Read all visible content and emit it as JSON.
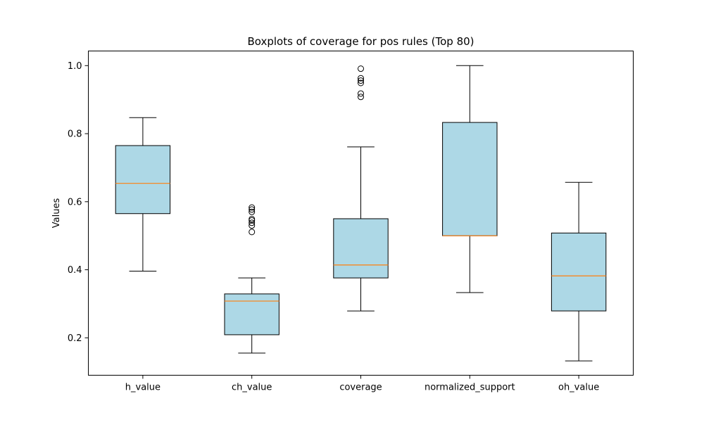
{
  "chart_data": {
    "type": "boxplot",
    "title": "Boxplots of coverage for pos rules (Top 80)",
    "xlabel": "",
    "ylabel": "Values",
    "ylim": [
      0.09,
      1.043
    ],
    "yticks": [
      0.2,
      0.4,
      0.6,
      0.8,
      1.0
    ],
    "ytick_labels": [
      "0.2",
      "0.4",
      "0.6",
      "0.8",
      "1.0"
    ],
    "grid": false,
    "colors": {
      "box_fill": "#add8e6",
      "median": "#ff7f0e",
      "line": "#000000"
    },
    "categories": [
      "h_value",
      "ch_value",
      "coverage",
      "normalized_support",
      "oh_value"
    ],
    "boxes": [
      {
        "name": "h_value",
        "whisker_low": 0.396,
        "q1": 0.565,
        "median": 0.654,
        "q3": 0.765,
        "whisker_high": 0.847,
        "outliers": []
      },
      {
        "name": "ch_value",
        "whisker_low": 0.155,
        "q1": 0.209,
        "median": 0.308,
        "q3": 0.329,
        "whisker_high": 0.376,
        "outliers": [
          0.511,
          0.53,
          0.538,
          0.545,
          0.549,
          0.57,
          0.577,
          0.583
        ]
      },
      {
        "name": "coverage",
        "whisker_low": 0.279,
        "q1": 0.376,
        "median": 0.414,
        "q3": 0.55,
        "whisker_high": 0.761,
        "outliers": [
          0.908,
          0.918,
          0.949,
          0.956,
          0.963,
          0.991
        ]
      },
      {
        "name": "normalized_support",
        "whisker_low": 0.333,
        "q1": 0.5,
        "median": 0.5,
        "q3": 0.833,
        "whisker_high": 1.0,
        "outliers": []
      },
      {
        "name": "oh_value",
        "whisker_low": 0.132,
        "q1": 0.279,
        "median": 0.382,
        "q3": 0.508,
        "whisker_high": 0.657,
        "outliers": []
      }
    ]
  }
}
